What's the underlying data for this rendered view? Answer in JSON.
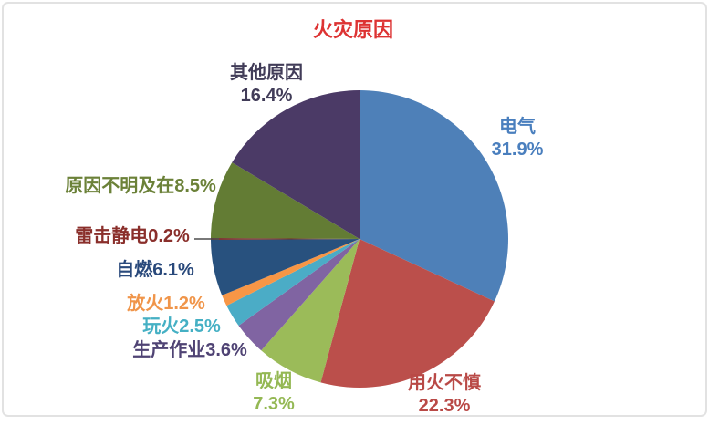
{
  "panel": {
    "background": "#ffffff",
    "border_color": "#e2e2e2"
  },
  "chart_data": {
    "type": "pie",
    "title": "火灾原因",
    "title_color": "#dd3333",
    "values_unit": "%",
    "start_angle": "12-o-clock",
    "direction": "clockwise",
    "legend_position": "none",
    "labels_position": "outside",
    "leader_line_color": "#4d4d4d",
    "slices": [
      {
        "name": "电气",
        "value": 31.9,
        "pct_text": "31.9%",
        "color": "#4E80B8",
        "label_color": "#4a7fbe"
      },
      {
        "name": "用火不慎",
        "value": 22.3,
        "pct_text": "22.3%",
        "color": "#BB4F4B",
        "label_color": "#b94946"
      },
      {
        "name": "吸烟",
        "value": 7.3,
        "pct_text": "7.3%",
        "color": "#9BBB59",
        "label_color": "#94b854"
      },
      {
        "name": "生产作业",
        "value": 3.6,
        "pct_text": "3.6%",
        "color": "#8064A2",
        "label_color": "#4f4374"
      },
      {
        "name": "玩火",
        "value": 2.5,
        "pct_text": "2.5%",
        "color": "#4BACC6",
        "label_color": "#45b0c4"
      },
      {
        "name": "放火",
        "value": 1.2,
        "pct_text": "1.2%",
        "color": "#F79646",
        "label_color": "#f0954a"
      },
      {
        "name": "自燃",
        "value": 6.1,
        "pct_text": "6.1%",
        "color": "#28517E",
        "label_color": "#29497b"
      },
      {
        "name": "雷击静电",
        "value": 0.2,
        "pct_text": "0.2%",
        "color": "#772C2A",
        "label_color": "#8a2f2b"
      },
      {
        "name": "原因不明及在",
        "value": 8.5,
        "pct_text": "8.5%",
        "color": "#637C34",
        "label_color": "#6b8138"
      },
      {
        "name": "其他原因",
        "value": 16.4,
        "pct_text": "16.4%",
        "color": "#4B3A66",
        "label_color": "#413c58"
      }
    ]
  }
}
